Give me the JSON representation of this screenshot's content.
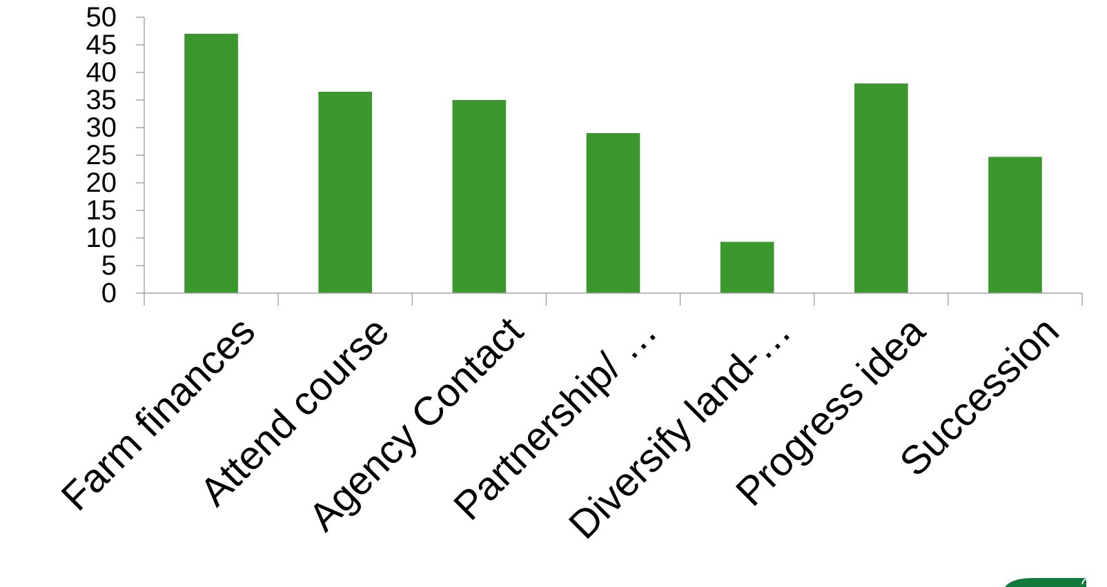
{
  "chart_data": {
    "type": "bar",
    "categories": [
      "Farm finances",
      "Attend course",
      "Agency Contact",
      "Partnership/ …",
      "Diversify land-…",
      "Progress idea",
      "Succession"
    ],
    "values": [
      47,
      36.5,
      35,
      29,
      9.3,
      38,
      24.7
    ],
    "ylim": [
      0,
      50
    ],
    "yticks": [
      "0",
      "5",
      "10",
      "15",
      "20",
      "25",
      "30",
      "35",
      "40",
      "45",
      "50"
    ],
    "grid": false,
    "legend": "none",
    "title": "",
    "xlabel": "",
    "ylabel": "",
    "bar_color": "#3a982d",
    "axis_color": "#a6a6a6"
  },
  "logo": {
    "icon": "logo-swoosh-icon",
    "color": "#0f7a3c"
  }
}
